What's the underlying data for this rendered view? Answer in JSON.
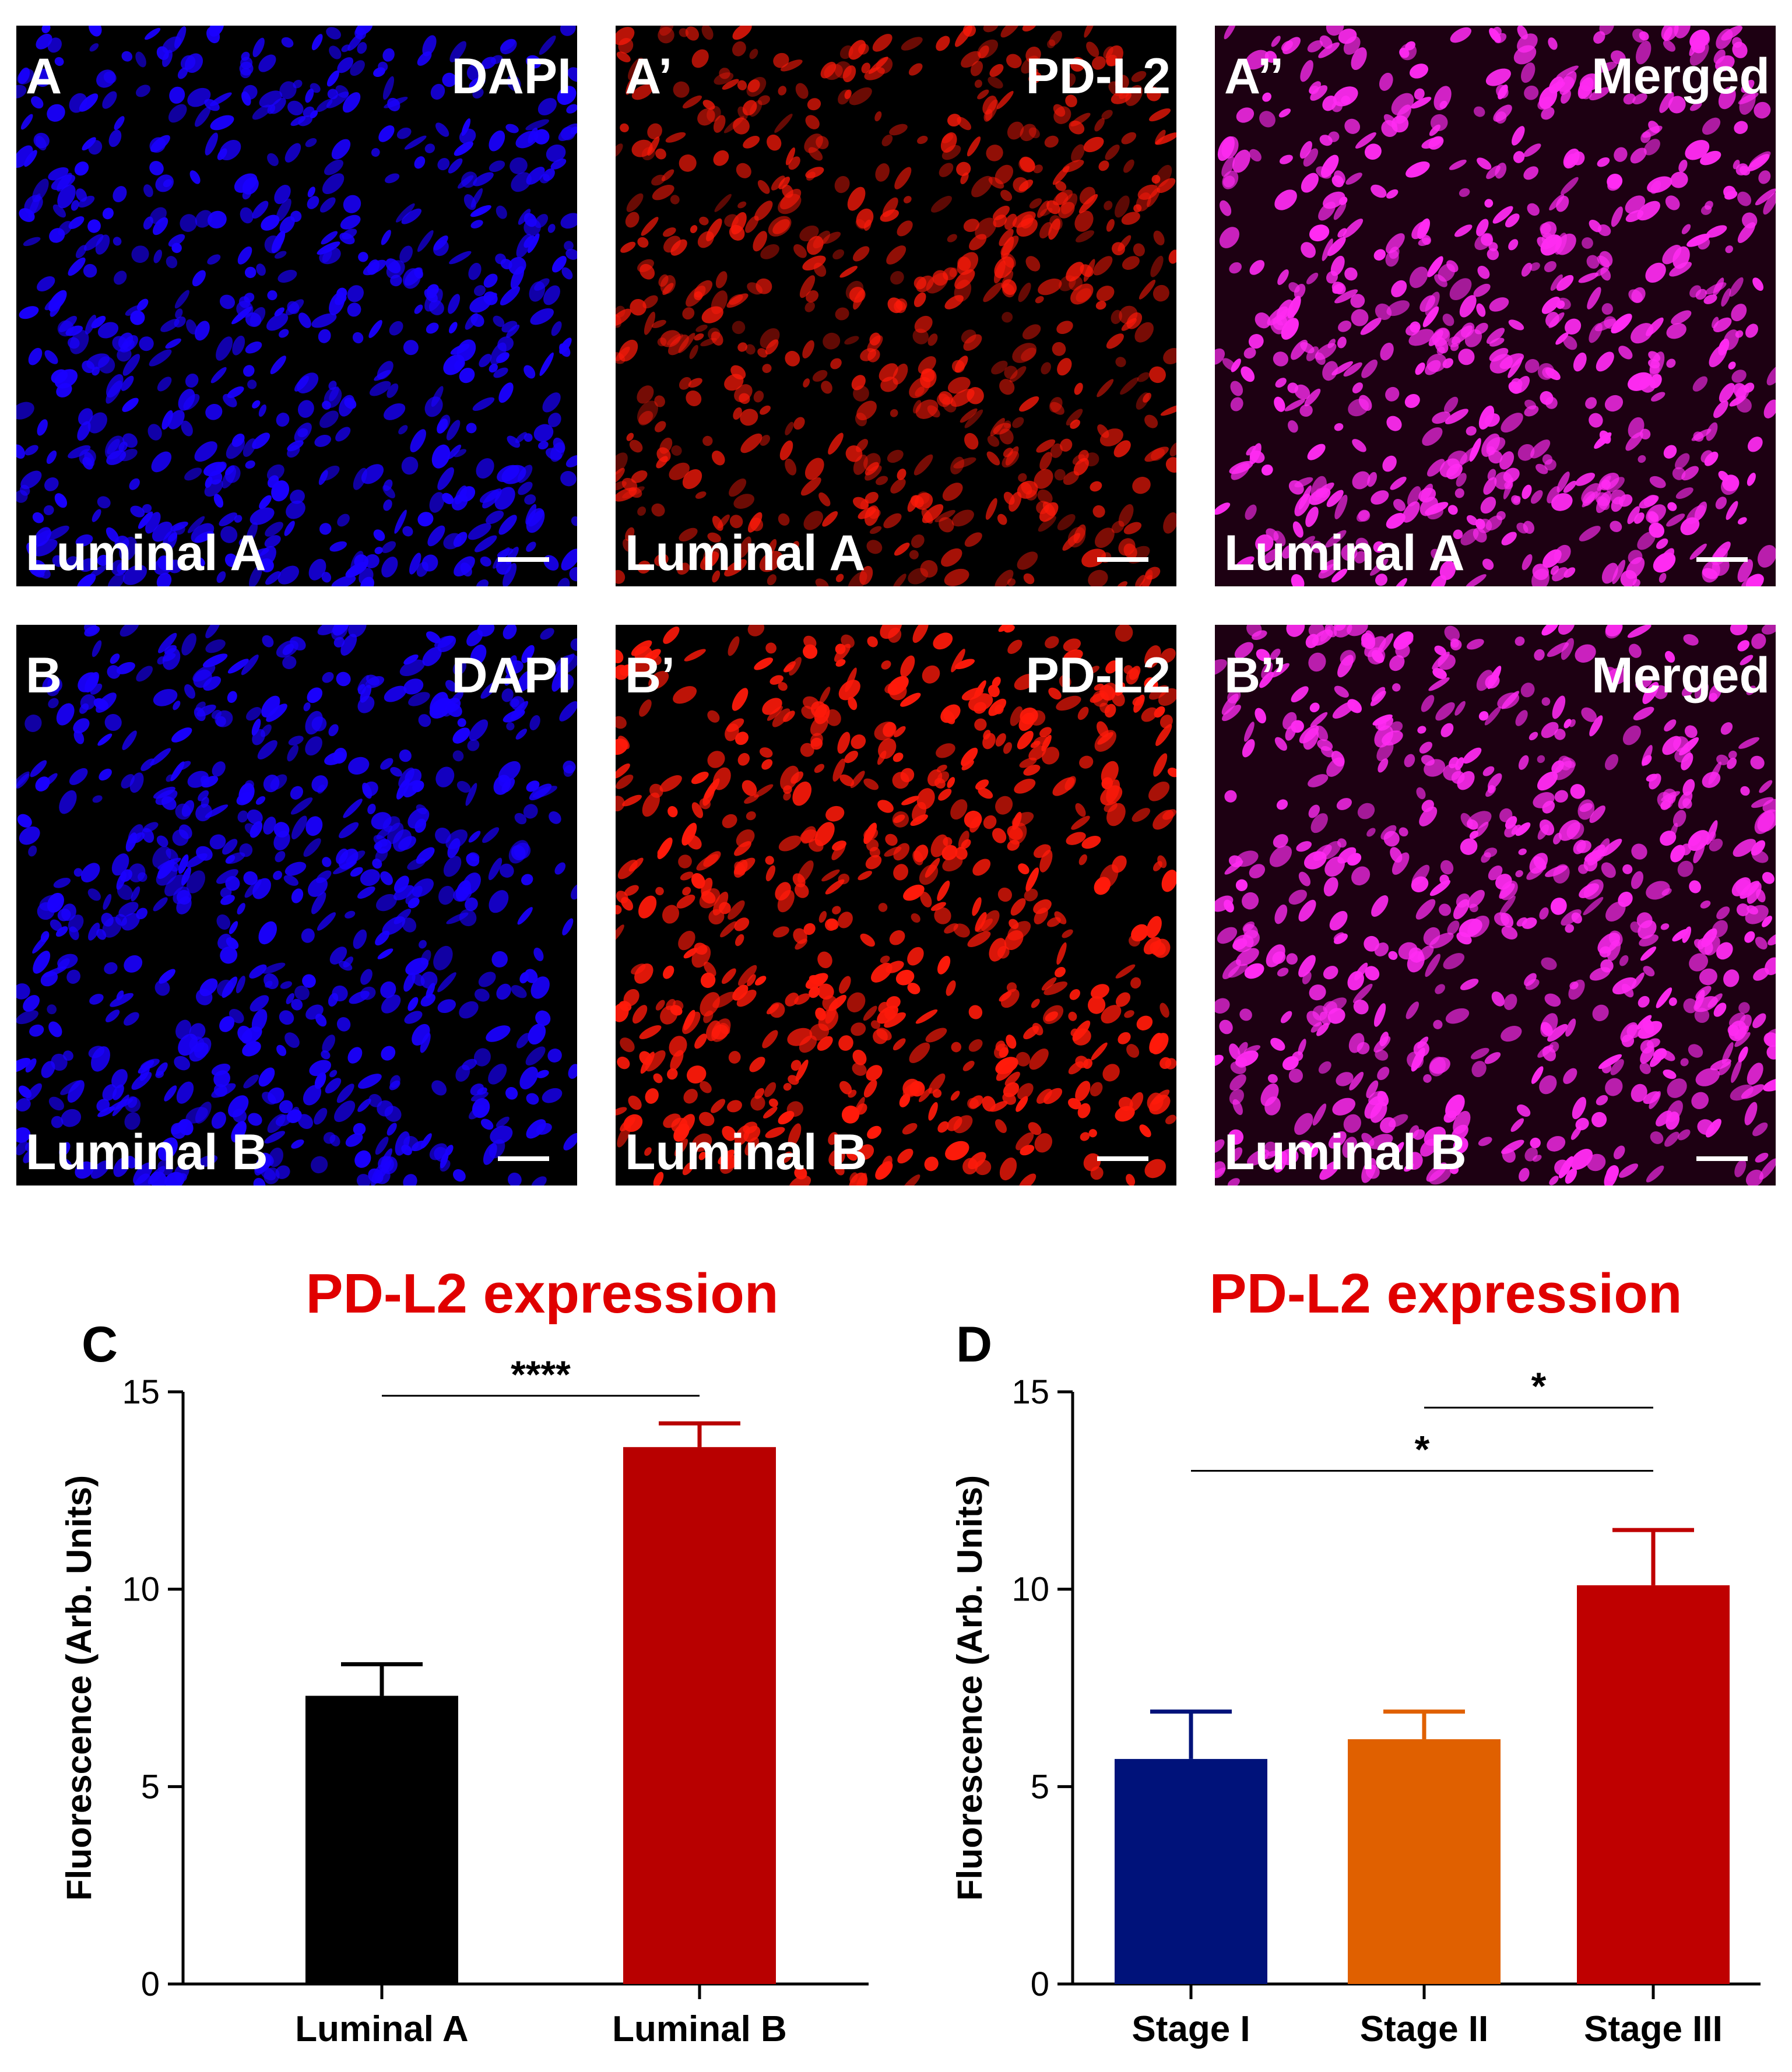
{
  "micrographs": [
    {
      "letter": "A",
      "stain": "DAPI",
      "subtype": "Luminal A",
      "channel": "dapi"
    },
    {
      "letter": "A’",
      "stain": "PD-L2",
      "subtype": "Luminal A",
      "channel": "pdl2"
    },
    {
      "letter": "A’’",
      "stain": "Merged",
      "subtype": "Luminal A",
      "channel": "merged"
    },
    {
      "letter": "B",
      "stain": "DAPI",
      "subtype": "Luminal B",
      "channel": "dapi"
    },
    {
      "letter": "B’",
      "stain": "PD-L2",
      "subtype": "Luminal B",
      "channel": "pdl2"
    },
    {
      "letter": "B’’",
      "stain": "Merged",
      "subtype": "Luminal B",
      "channel": "merged"
    }
  ],
  "colors": {
    "dapi": "#1a00ff",
    "pdl2": "#ff1a0a",
    "merged": "#ff2bf2",
    "title": "#e00000",
    "luminal_a": "#000000",
    "luminal_b": "#b80000",
    "stage_i": "#00127a",
    "stage_ii": "#e06000",
    "stage_iii": "#bf0000"
  },
  "chart_data": [
    {
      "panel_letter": "C",
      "type": "bar",
      "title": "PD-L2 expression",
      "xlabel": "",
      "ylabel": "Fluorescence (Arb. Units)",
      "ylim": [
        0,
        15
      ],
      "yticks": [
        0,
        5,
        10,
        15
      ],
      "categories": [
        "Luminal A",
        "Luminal B"
      ],
      "values": [
        7.3,
        13.6
      ],
      "errors": [
        0.8,
        0.6
      ],
      "bar_colors": [
        "#000000",
        "#b80000"
      ],
      "significance": [
        {
          "from": 0,
          "to": 1,
          "label": "****",
          "y": 14.9
        }
      ]
    },
    {
      "panel_letter": "D",
      "type": "bar",
      "title": "PD-L2 expression",
      "xlabel": "",
      "ylabel": "Fluorescence (Arb. Units)",
      "ylim": [
        0,
        15
      ],
      "yticks": [
        0,
        5,
        10,
        15
      ],
      "categories": [
        "Stage I",
        "Stage II",
        "Stage III"
      ],
      "values": [
        5.7,
        6.2,
        10.1
      ],
      "errors": [
        1.2,
        0.7,
        1.4
      ],
      "bar_colors": [
        "#00127a",
        "#e06000",
        "#bf0000"
      ],
      "significance": [
        {
          "from": 1,
          "to": 2,
          "label": "*",
          "y": 14.6
        },
        {
          "from": 0,
          "to": 2,
          "label": "*",
          "y": 13.0
        }
      ]
    }
  ]
}
